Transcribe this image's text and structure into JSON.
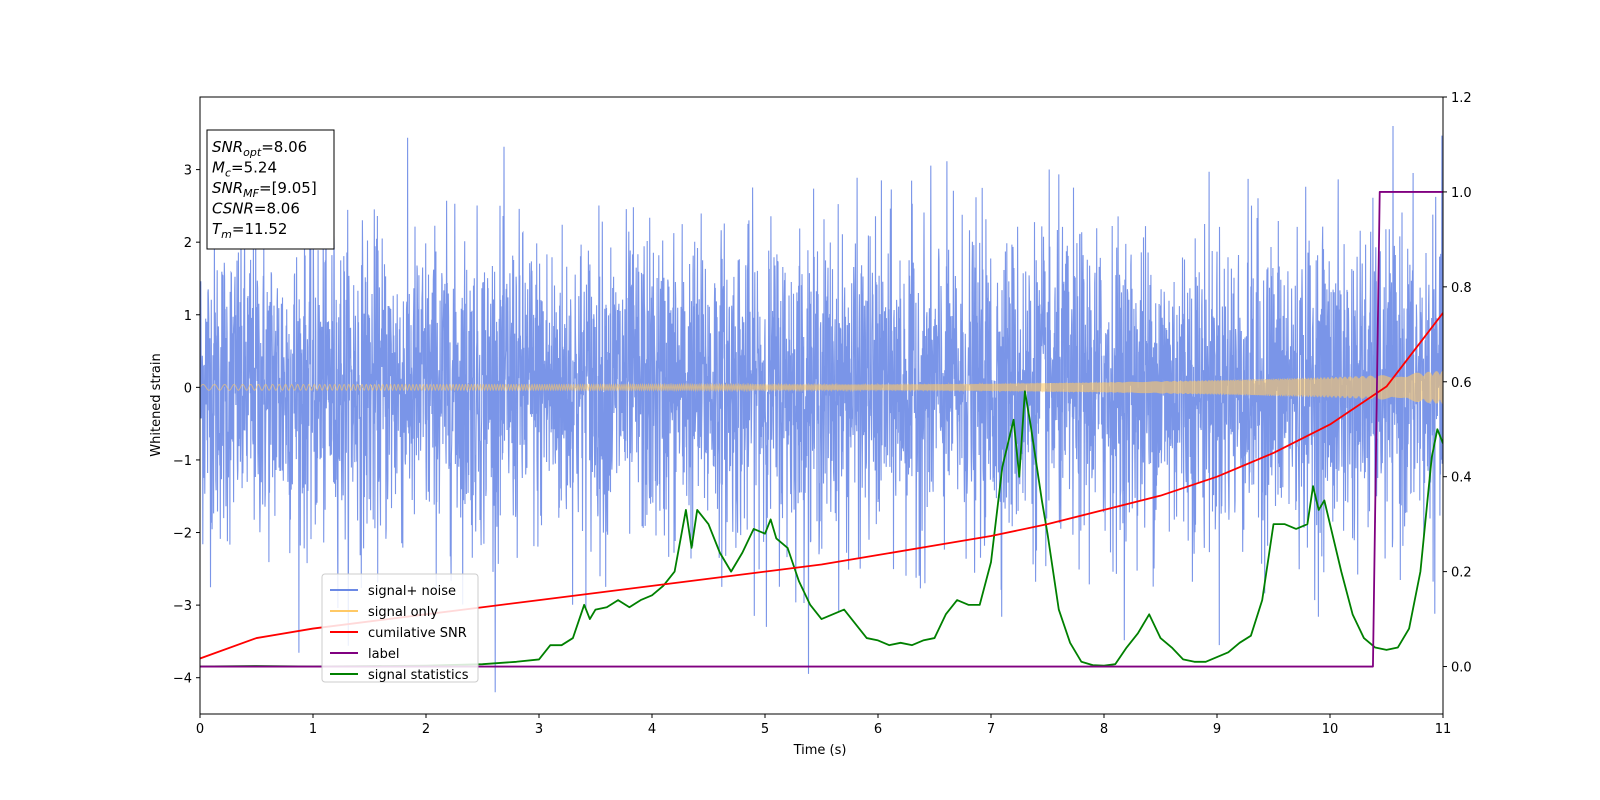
{
  "chart_data": {
    "type": "line",
    "xlabel": "Time (s)",
    "ylabel": "Whitened strain",
    "xlim": [
      0,
      11
    ],
    "ylim_left": [
      -4.5,
      4.0
    ],
    "ylim_right": [
      -0.1,
      1.2
    ],
    "x_ticks": [
      "0",
      "1",
      "2",
      "3",
      "4",
      "5",
      "6",
      "7",
      "8",
      "9",
      "10",
      "11"
    ],
    "y_left_ticks": [
      "3",
      "2",
      "1",
      "0",
      "−1",
      "−2",
      "−3",
      "−4"
    ],
    "y_right_ticks": [
      "1.2",
      "1.0",
      "0.8",
      "0.6",
      "0.4",
      "0.2",
      "0.0"
    ],
    "legend_position": "lower-left",
    "legend": [
      {
        "label": "signal+ noise",
        "color": "#6b89e5"
      },
      {
        "label": "signal only",
        "color": "#ffc966"
      },
      {
        "label": "cumilative SNR",
        "color": "#ff0000"
      },
      {
        "label": "label",
        "color": "#800080"
      },
      {
        "label": "signal statistics",
        "color": "#008000"
      }
    ],
    "annotation_box": {
      "position": "top-left",
      "lines": [
        {
          "sym": "SNR",
          "sub": "opt",
          "value": "=8.06"
        },
        {
          "sym": "M",
          "sub": "c",
          "value": "=5.24"
        },
        {
          "sym": "SNR",
          "sub": "MF",
          "value": "=[9.05]"
        },
        {
          "sym": "CSNR",
          "sub": "",
          "value": "=8.06"
        },
        {
          "sym": "T",
          "sub": "m",
          "value": "=11.52"
        }
      ]
    },
    "series": [
      {
        "name": "signal+ noise",
        "axis": "left",
        "color": "#6b89e5",
        "description_points": {
          "t": [
            0,
            11
          ],
          "amplitude_range": [
            -4.2,
            3.6
          ]
        }
      },
      {
        "name": "signal only",
        "axis": "left",
        "color": "#ffc966",
        "envelope": {
          "t": [
            0,
            2,
            4,
            6,
            7,
            8,
            9,
            10,
            10.5,
            11
          ],
          "amp": [
            0.04,
            0.04,
            0.04,
            0.04,
            0.05,
            0.07,
            0.1,
            0.14,
            0.17,
            0.23
          ]
        }
      },
      {
        "name": "cumilative SNR",
        "axis": "right",
        "color": "#ff0000",
        "x": [
          0,
          0.5,
          1,
          1.5,
          2,
          2.5,
          3,
          3.5,
          4,
          4.5,
          5,
          5.5,
          6,
          6.5,
          7,
          7.5,
          8,
          8.5,
          9,
          9.5,
          10,
          10.5,
          11
        ],
        "y": [
          0.017,
          0.06,
          0.08,
          0.095,
          0.11,
          0.125,
          0.14,
          0.155,
          0.17,
          0.185,
          0.2,
          0.215,
          0.235,
          0.255,
          0.275,
          0.3,
          0.33,
          0.36,
          0.4,
          0.45,
          0.51,
          0.59,
          0.745
        ]
      },
      {
        "name": "label",
        "axis": "right",
        "color": "#800080",
        "x": [
          0,
          10.38,
          10.44,
          11
        ],
        "y": [
          0,
          0,
          1,
          1
        ]
      },
      {
        "name": "signal statistics",
        "axis": "right",
        "color": "#008000",
        "x": [
          0,
          0.5,
          1,
          1.5,
          2,
          2.5,
          2.8,
          3.0,
          3.1,
          3.2,
          3.3,
          3.4,
          3.45,
          3.5,
          3.6,
          3.7,
          3.8,
          3.9,
          4.0,
          4.1,
          4.2,
          4.3,
          4.35,
          4.4,
          4.5,
          4.6,
          4.7,
          4.8,
          4.9,
          5.0,
          5.05,
          5.1,
          5.2,
          5.3,
          5.4,
          5.5,
          5.6,
          5.7,
          5.8,
          5.9,
          6.0,
          6.1,
          6.2,
          6.3,
          6.4,
          6.5,
          6.6,
          6.7,
          6.8,
          6.9,
          7.0,
          7.1,
          7.2,
          7.25,
          7.3,
          7.35,
          7.45,
          7.5,
          7.6,
          7.7,
          7.8,
          7.9,
          8.0,
          8.1,
          8.2,
          8.3,
          8.4,
          8.5,
          8.6,
          8.7,
          8.8,
          8.9,
          9.0,
          9.1,
          9.2,
          9.3,
          9.4,
          9.5,
          9.6,
          9.7,
          9.8,
          9.85,
          9.9,
          9.95,
          10.0,
          10.1,
          10.2,
          10.3,
          10.4,
          10.5,
          10.6,
          10.7,
          10.8,
          10.9,
          10.95,
          11.0
        ],
        "y": [
          0.0,
          0.001,
          0.0,
          0.001,
          0.002,
          0.005,
          0.01,
          0.015,
          0.045,
          0.045,
          0.06,
          0.13,
          0.1,
          0.12,
          0.125,
          0.14,
          0.125,
          0.14,
          0.15,
          0.17,
          0.2,
          0.33,
          0.25,
          0.33,
          0.3,
          0.24,
          0.2,
          0.24,
          0.29,
          0.28,
          0.31,
          0.27,
          0.25,
          0.18,
          0.13,
          0.1,
          0.11,
          0.12,
          0.09,
          0.06,
          0.055,
          0.045,
          0.05,
          0.045,
          0.055,
          0.06,
          0.11,
          0.14,
          0.13,
          0.13,
          0.22,
          0.42,
          0.52,
          0.4,
          0.58,
          0.51,
          0.35,
          0.28,
          0.12,
          0.05,
          0.01,
          0.003,
          0.002,
          0.005,
          0.04,
          0.07,
          0.11,
          0.06,
          0.04,
          0.015,
          0.01,
          0.01,
          0.02,
          0.03,
          0.05,
          0.065,
          0.14,
          0.3,
          0.3,
          0.29,
          0.3,
          0.38,
          0.33,
          0.35,
          0.3,
          0.2,
          0.11,
          0.06,
          0.04,
          0.035,
          0.04,
          0.08,
          0.2,
          0.44,
          0.5,
          0.47
        ]
      }
    ]
  }
}
